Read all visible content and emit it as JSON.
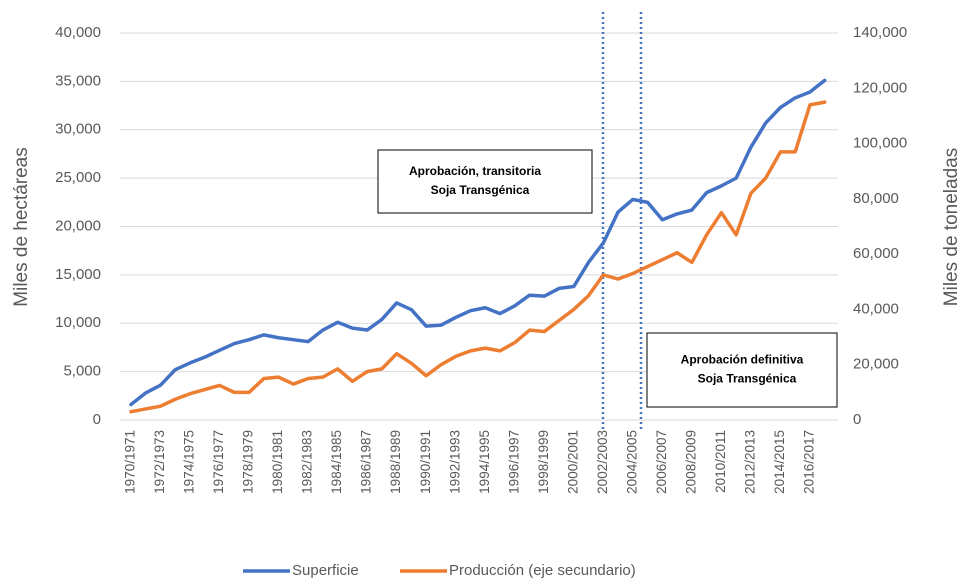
{
  "chart_data": {
    "type": "line",
    "categories": [
      "1970/1971",
      null,
      "1972/1973",
      null,
      "1974/1975",
      null,
      "1976/1977",
      null,
      "1978/1979",
      null,
      "1980/1981",
      null,
      "1982/1983",
      null,
      "1984/1985",
      null,
      "1986/1987",
      null,
      "1988/1989",
      null,
      "1990/1991",
      null,
      "1992/1993",
      null,
      "1994/1995",
      null,
      "1996/1997",
      null,
      "1998/1999",
      null,
      "2000/2001",
      null,
      "2002/2003",
      null,
      "2004/2005",
      null,
      "2006/2007",
      null,
      "2008/2009",
      null,
      "2010/2011",
      null,
      "2012/2013",
      null,
      "2014/2015",
      null,
      "2016/2017",
      null
    ],
    "series": [
      {
        "name": "Superficie",
        "color": "#4472c4",
        "values": [
          1600,
          2800,
          3600,
          5200,
          5900,
          6500,
          7200,
          7900,
          8300,
          8800,
          8500,
          8300,
          8100,
          9300,
          10100,
          9500,
          9300,
          10400,
          12100,
          11400,
          9700,
          9800,
          10600,
          11300,
          11600,
          11000,
          11800,
          12900,
          12800,
          13600,
          13800,
          16300,
          18300,
          21500,
          22800,
          22500,
          20700,
          21300,
          21700,
          23500,
          24200,
          25000,
          28200,
          30700,
          32300,
          33300,
          33900,
          35100
        ]
      },
      {
        "name": "Producción (eje secundario)",
        "color": "#ed7d31",
        "axis": "y2",
        "values": [
          3000,
          4000,
          5000,
          7500,
          9500,
          11000,
          12500,
          10000,
          10000,
          15000,
          15500,
          13000,
          15000,
          15500,
          18500,
          14000,
          17500,
          18500,
          24000,
          20500,
          16000,
          20000,
          23000,
          25000,
          26000,
          25000,
          28000,
          32500,
          32000,
          36000,
          40000,
          45000,
          52500,
          51000,
          53000,
          55500,
          58000,
          60500,
          57000,
          67000,
          75000,
          67000,
          82000,
          87500,
          97000,
          97000,
          114000,
          115000
        ]
      }
    ],
    "ylabel": "Miles de hectáreas",
    "y2label": "Miles de toneladas",
    "ylim": [
      0,
      40000
    ],
    "yticks": [
      0,
      {
        "value": 5000,
        "label": "5,000"
      },
      {
        "value": 10000,
        "label": "10,000"
      },
      {
        "value": 15000,
        "label": "15,000"
      },
      {
        "value": 20000,
        "label": "20,000"
      },
      {
        "value": 25000,
        "label": "25,000"
      },
      {
        "value": 30000,
        "label": "30,000"
      },
      {
        "value": 35000,
        "label": "35,000"
      },
      {
        "value": 40000,
        "label": "40,000"
      }
    ],
    "y2lim": [
      0,
      140000
    ],
    "y2ticks": [
      0,
      {
        "value": 20000,
        "label": "20,000"
      },
      {
        "value": 40000,
        "label": "40,000"
      },
      {
        "value": 60000,
        "label": "60,000"
      },
      {
        "value": 80000,
        "label": "80,000"
      },
      {
        "value": 100000,
        "label": "100,000"
      },
      {
        "value": 120000,
        "label": "120,000"
      },
      {
        "value": 140000,
        "label": "140,000"
      }
    ],
    "grid": true,
    "legend": "bottom",
    "annotations": [
      [
        "Aprobación, transitoria",
        "Soja Transgénica"
      ],
      [
        "Aprobación definitiva",
        "Soja Transgénica"
      ]
    ]
  }
}
